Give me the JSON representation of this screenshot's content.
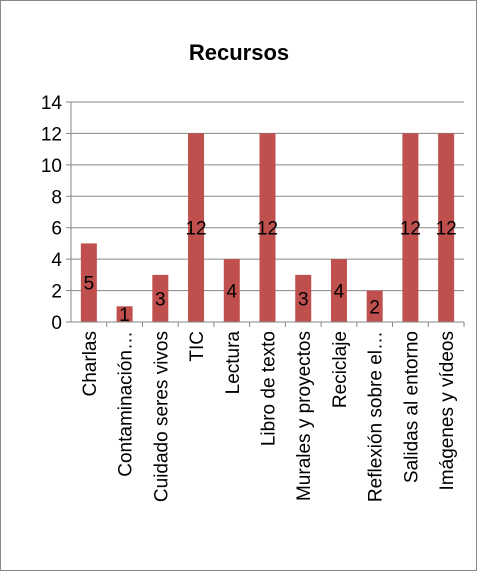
{
  "chart_data": {
    "type": "bar",
    "title": "Recursos",
    "xlabel": "",
    "ylabel": "",
    "ylim": [
      0,
      14
    ],
    "yticks": [
      0,
      2,
      4,
      6,
      8,
      10,
      12,
      14
    ],
    "grid": true,
    "legend": "none",
    "categories": [
      "Charlas",
      "Contaminación…",
      "Cuidado seres vivos",
      "TIC",
      "Lectura",
      "Libro de texto",
      "Murales y proyectos",
      "Reciclaje",
      "Reflexión sobre el…",
      "Salidas al entorno",
      "Imágenes y vídeos"
    ],
    "values": [
      5,
      1,
      3,
      12,
      4,
      12,
      3,
      4,
      2,
      12,
      12
    ],
    "data_labels": [
      "5",
      "1",
      "3",
      "12",
      "4",
      "12",
      "3",
      "4",
      "2",
      "12",
      "12"
    ],
    "colors": {
      "bar": "#C0504D",
      "grid": "#868686",
      "axis": "#868686",
      "text": "#000000"
    }
  }
}
